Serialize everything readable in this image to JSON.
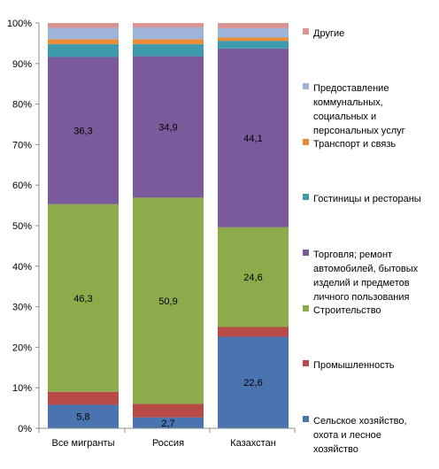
{
  "chart_data": {
    "type": "bar",
    "stacked": "percent",
    "categories": [
      "Все мигранты",
      "Россия",
      "Казахстан"
    ],
    "series": [
      {
        "name": "Сельское хозяйство, охота и лесное хозяйство",
        "color": "#4a74b0",
        "values": [
          5.8,
          2.7,
          22.6
        ],
        "labels": [
          "5,8",
          "2,7",
          "22,6"
        ]
      },
      {
        "name": "Промышленность",
        "color": "#b84a47",
        "values": [
          3.2,
          3.3,
          2.4
        ],
        "labels": [
          "",
          "",
          ""
        ]
      },
      {
        "name": "Строительство",
        "color": "#8cab4a",
        "values": [
          46.3,
          50.9,
          24.6
        ],
        "labels": [
          "46,3",
          "50,9",
          "24,6"
        ]
      },
      {
        "name": "Торговля; ремонт автомобилей, бытовых изделий и предметов личного пользования",
        "color": "#7a5a9a",
        "values": [
          36.3,
          34.9,
          44.1
        ],
        "labels": [
          "36,3",
          "34,9",
          "44,1"
        ]
      },
      {
        "name": "Гостиницы и рестораны",
        "color": "#3f9aac",
        "values": [
          3.2,
          3.0,
          1.9
        ],
        "labels": [
          "",
          "",
          ""
        ]
      },
      {
        "name": "Транспорт и связь",
        "color": "#ee8a34",
        "values": [
          1.2,
          1.2,
          0.8
        ],
        "labels": [
          "",
          "",
          ""
        ]
      },
      {
        "name": "Предоставление коммунальных, социальных и персональных услуг",
        "color": "#9db3d8",
        "values": [
          2.8,
          2.9,
          2.3
        ],
        "labels": [
          "",
          "",
          ""
        ]
      },
      {
        "name": "Другие",
        "color": "#d99594",
        "values": [
          1.2,
          1.1,
          1.3
        ],
        "labels": [
          "",
          "",
          ""
        ]
      }
    ],
    "yticks": [
      "0%",
      "10%",
      "20%",
      "30%",
      "40%",
      "50%",
      "60%",
      "70%",
      "80%",
      "90%",
      "100%"
    ],
    "ylim": [
      0,
      100
    ],
    "grid": false,
    "legend": {
      "position": "right",
      "entries": [
        {
          "color": "#d99594",
          "lines": [
            "Другие"
          ]
        },
        {
          "color": "#9db3d8",
          "lines": [
            "Предоставление",
            "коммунальных,",
            "социальных и",
            "персональных услуг"
          ]
        },
        {
          "color": "#ee8a34",
          "lines": [
            "Транспорт и связь"
          ]
        },
        {
          "color": "#3f9aac",
          "lines": [
            "Гостиницы и рестораны"
          ]
        },
        {
          "color": "#7a5a9a",
          "lines": [
            "Торговля; ремонт",
            "автомобилей, бытовых",
            "изделий и предметов",
            "личного пользования"
          ]
        },
        {
          "color": "#8cab4a",
          "lines": [
            "Строительство"
          ]
        },
        {
          "color": "#b84a47",
          "lines": [
            "Промышленность"
          ]
        },
        {
          "color": "#4a74b0",
          "lines": [
            "Сельское хозяйство,",
            "охота и лесное",
            "хозяйство"
          ]
        }
      ]
    }
  }
}
